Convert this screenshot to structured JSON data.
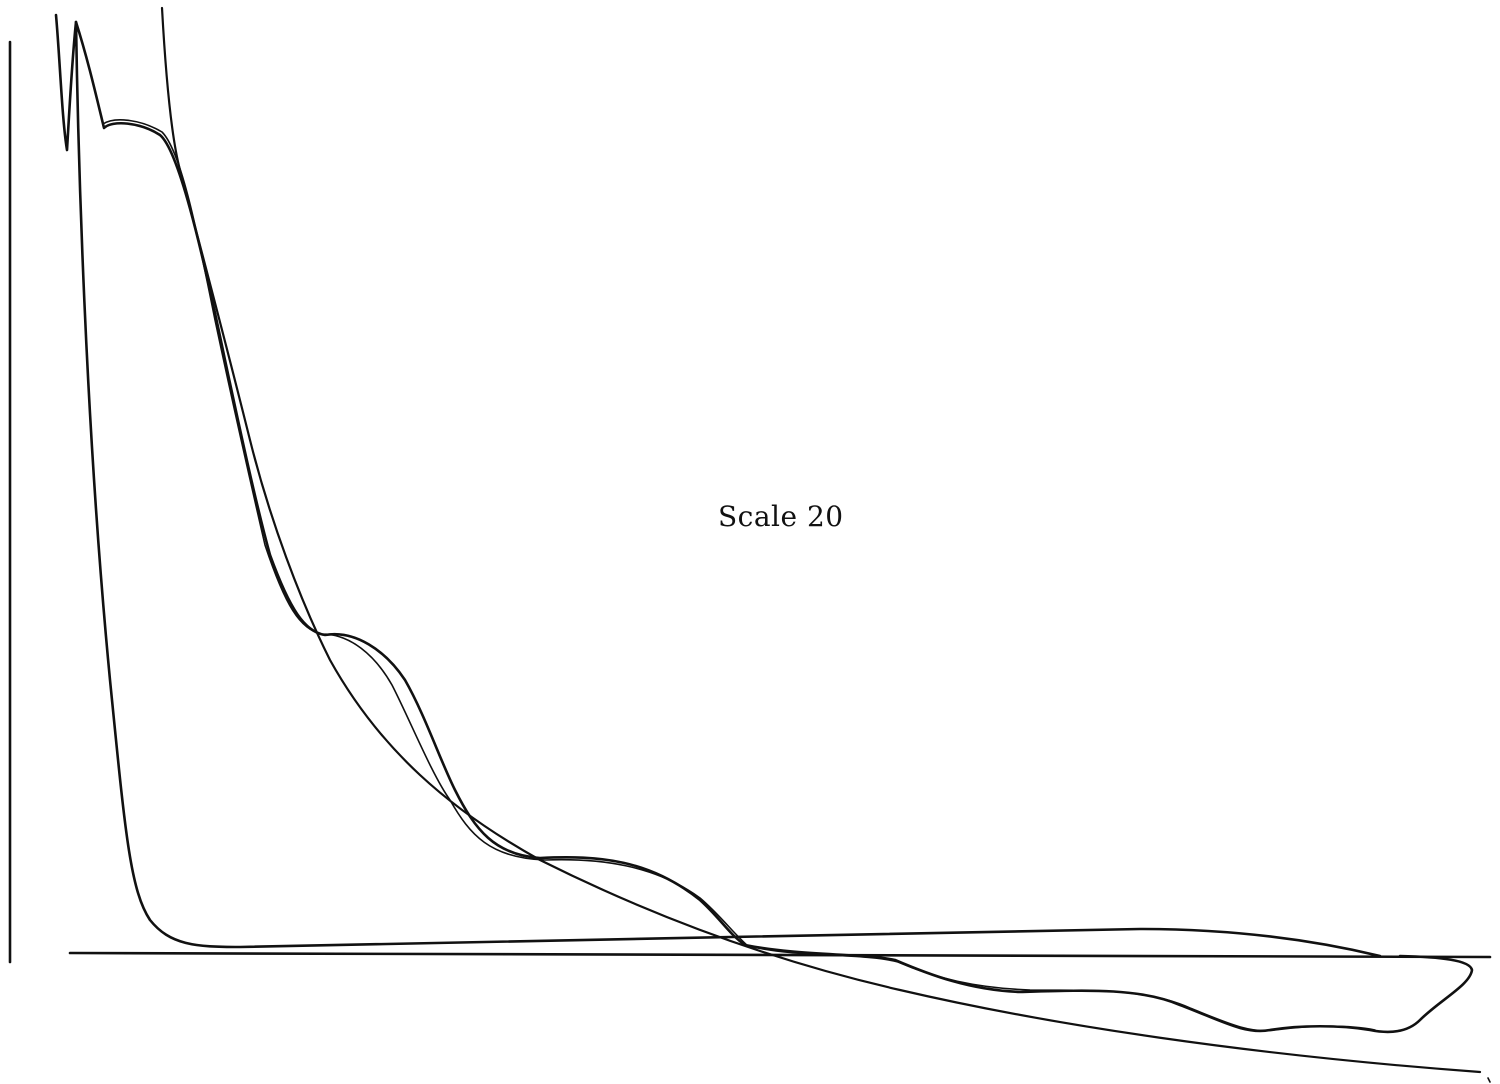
{
  "label": {
    "scale_text": "Scale 20"
  },
  "colors": {
    "ink": "#111111",
    "paper": "#ffffff"
  }
}
